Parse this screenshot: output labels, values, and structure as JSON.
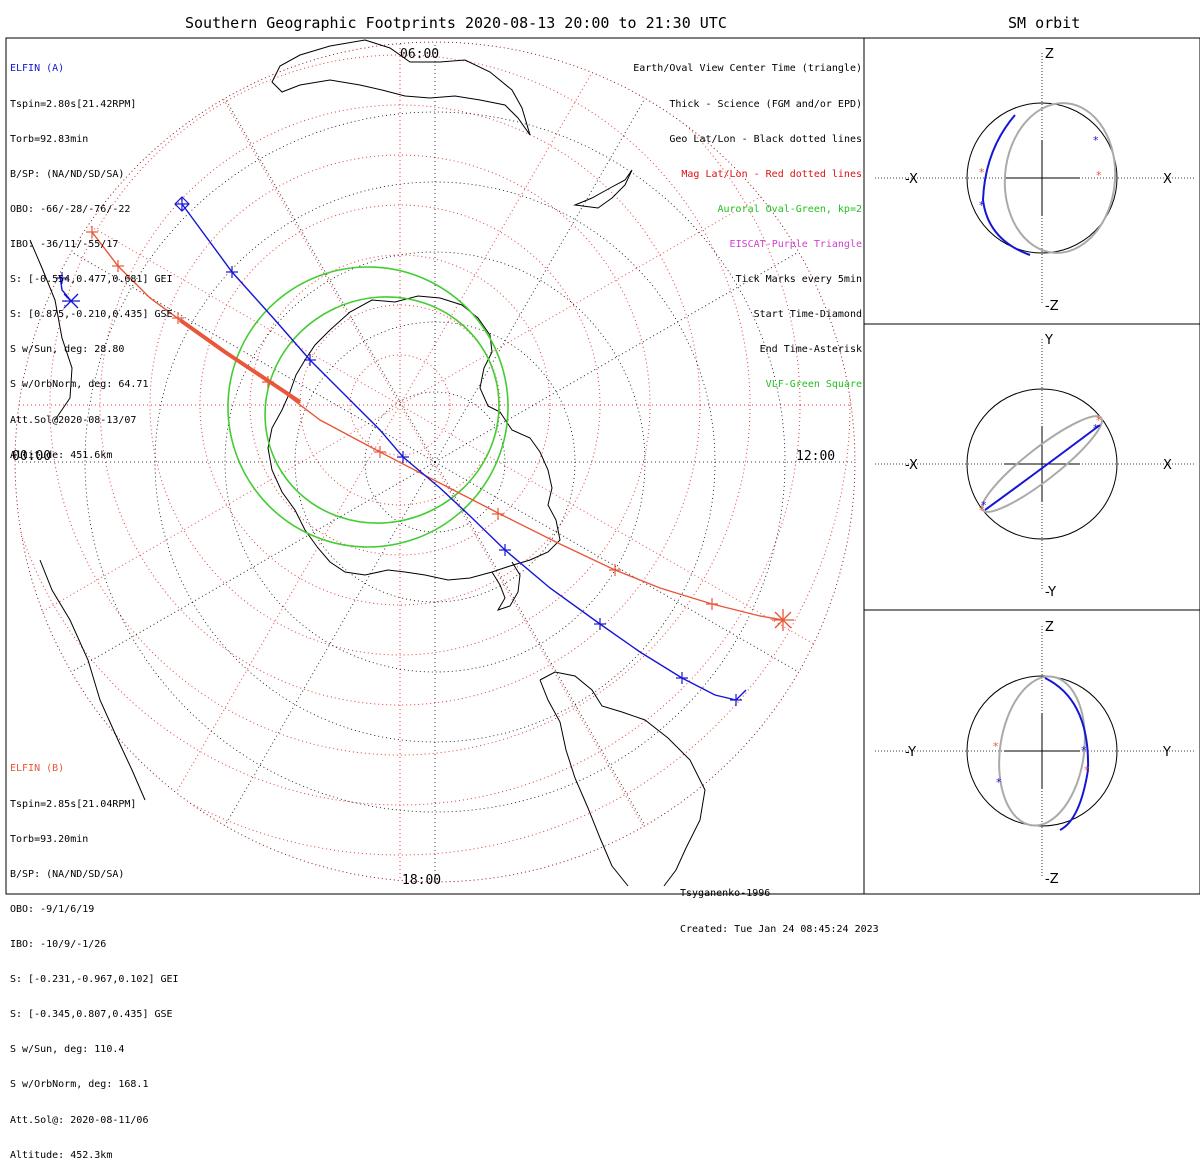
{
  "main_title": "Southern Geographic Footprints 2020-08-13 20:00 to 21:30 UTC",
  "sm_title": "SM orbit",
  "elfin_a": {
    "name": "ELFIN (A)",
    "lines": [
      "Tspin=2.80s[21.42RPM]",
      "Torb=92.83min",
      "B/SP: (NA/ND/SD/SA)",
      "OBO: -66/-28/-76/-22",
      "IBO: -36/11/-55/17",
      "S: [-0.554,0.477,0.681] GEI",
      "S: [0.875,-0.210,0.435] GSE",
      "S w/Sun, deg: 28.80",
      "S w/OrbNorm, deg: 64.71",
      "Att.Sol@2020-08-13/07",
      "Altitude: 451.6km"
    ],
    "color": "#1515d6"
  },
  "elfin_b": {
    "name": "ELFIN (B)",
    "lines": [
      "Tspin=2.85s[21.04RPM]",
      "Torb=93.20min",
      "B/SP: (NA/ND/SD/SA)",
      "OBO: -9/1/6/19",
      "IBO: -10/9/-1/26",
      "S: [-0.231,-0.967,0.102] GEI",
      "S: [-0.345,0.807,0.435] GSE",
      "S w/Sun, deg: 110.4",
      "S w/OrbNorm, deg: 168.1",
      "Att.Sol@: 2020-08-11/06",
      "Altitude: 452.3km"
    ],
    "color": "#e8573a"
  },
  "legend": [
    {
      "text": "Earth/Oval View Center Time (triangle)",
      "color": "#000000"
    },
    {
      "text": "Thick - Science (FGM and/or EPD)",
      "color": "#000000"
    },
    {
      "text": "Geo Lat/Lon - Black dotted lines",
      "color": "#000000"
    },
    {
      "text": "Mag Lat/Lon - Red dotted lines",
      "color": "#e01010"
    },
    {
      "text": "Auroral Oval-Green, kp=2",
      "color": "#22c022"
    },
    {
      "text": "EISCAT-Purple Triangle",
      "color": "#d040d0"
    },
    {
      "text": "Tick Marks every 5min",
      "color": "#000000"
    },
    {
      "text": "Start Time-Diamond",
      "color": "#000000"
    },
    {
      "text": "End Time-Asterisk",
      "color": "#000000"
    },
    {
      "text": "VLF-Green Square",
      "color": "#22c022"
    }
  ],
  "map_labels": {
    "top": "06:00",
    "left": "00:00",
    "right": "12:00",
    "bottom": "18:00"
  },
  "credits": [
    "Tsyganenko-1996",
    "Created: Tue Jan 24 08:45:24 2023"
  ],
  "panels": [
    {
      "id": "xz",
      "h_neg": "-X",
      "h_pos": "X",
      "v_pos": "Z",
      "v_neg": "-Z"
    },
    {
      "id": "xy",
      "h_neg": "-X",
      "h_pos": "X",
      "v_pos": "Y",
      "v_neg": "-Y"
    },
    {
      "id": "yz",
      "h_neg": "-Y",
      "h_pos": "Y",
      "v_pos": "Z",
      "v_neg": "-Z"
    }
  ],
  "colors": {
    "elfin_a": "#1515d6",
    "elfin_b": "#e8573a",
    "oval": "#44cc33",
    "mag_grid": "#e83a3a",
    "geo_grid": "#000000",
    "orbit_gray": "#aaaaaa"
  }
}
